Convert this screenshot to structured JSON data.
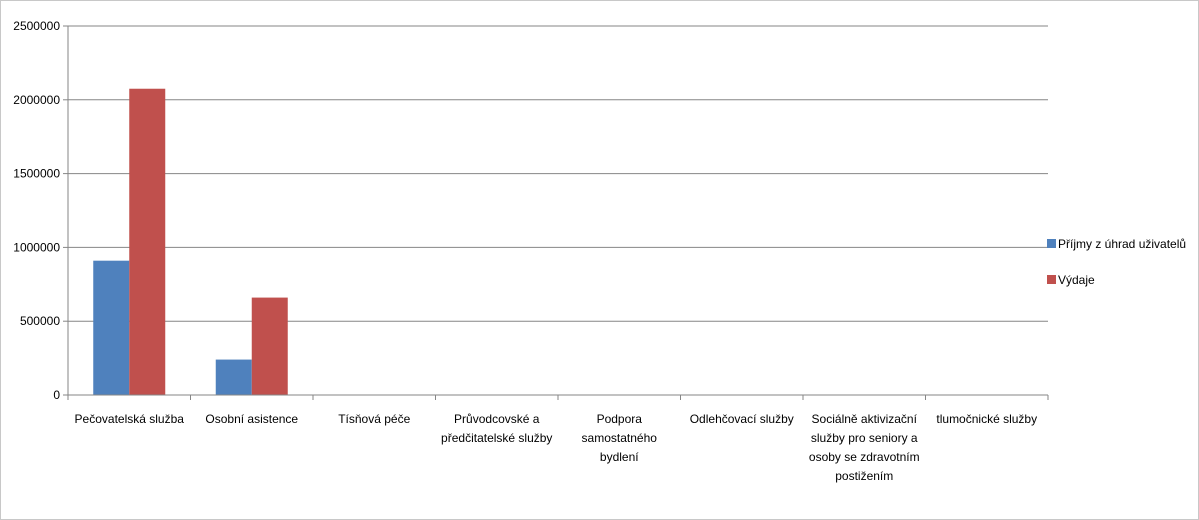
{
  "chart_data": {
    "type": "bar",
    "title": "",
    "xlabel": "",
    "ylabel": "",
    "ylim": [
      0,
      2500000
    ],
    "yticks": [
      0,
      500000,
      1000000,
      1500000,
      2000000,
      2500000
    ],
    "grid": true,
    "legend_position": "right",
    "categories": [
      [
        "Pečovatelská služba"
      ],
      [
        "Osobní asistence"
      ],
      [
        "Tísňová péče"
      ],
      [
        "Průvodcovské a",
        "předčitatelské služby"
      ],
      [
        "Podpora",
        "samostatného",
        "bydlení"
      ],
      [
        "Odlehčovací služby"
      ],
      [
        "Sociálně aktivizační",
        "služby pro seniory a",
        "osoby se zdravotním",
        "postižením"
      ],
      [
        "tlumočnické služby"
      ]
    ],
    "series": [
      {
        "name": "Příjmy z úhrad uživatelů",
        "color": "#4f81bd",
        "values": [
          910000,
          240000,
          0,
          0,
          0,
          0,
          0,
          0
        ]
      },
      {
        "name": "Výdaje",
        "color": "#c0504d",
        "values": [
          2075000,
          660000,
          0,
          0,
          0,
          0,
          0,
          0
        ]
      }
    ]
  }
}
